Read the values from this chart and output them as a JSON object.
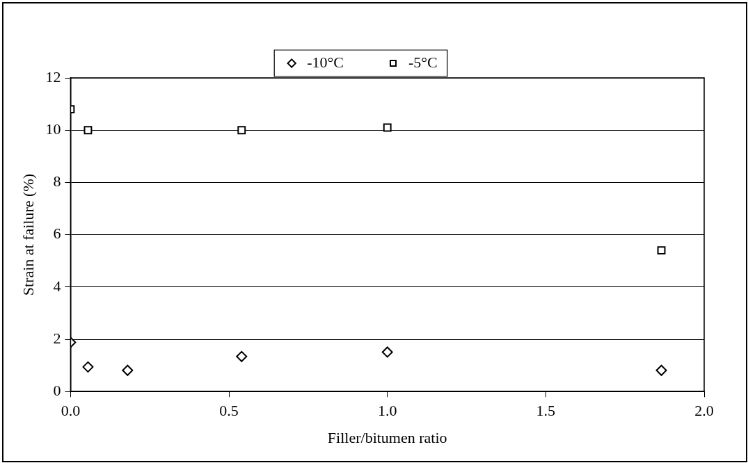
{
  "chart_data": {
    "type": "scatter",
    "xlabel": "Filler/bitumen ratio",
    "ylabel": "Strain at failure (%)",
    "series": [
      {
        "name": "-10°C",
        "color": "#000000",
        "marker": "diamond",
        "x": [
          0,
          0.055,
          0.18,
          0.54,
          1.0,
          1.865
        ],
        "values": [
          1.88,
          0.94,
          0.81,
          1.34,
          1.51,
          0.81
        ]
      },
      {
        "name": "-5°C",
        "color": "#000000",
        "marker": "square",
        "x": [
          0,
          0.055,
          0.54,
          1.0,
          1.865
        ],
        "values": [
          10.8,
          10.0,
          10.0,
          10.1,
          5.4
        ]
      }
    ],
    "xlim": [
      0,
      2
    ],
    "xticks": [
      {
        "value": 0,
        "label": "0.0"
      },
      0.5,
      {
        "value": 1,
        "label": "1.0"
      },
      1.5,
      {
        "value": 2,
        "label": "2.0"
      }
    ],
    "ylim": [
      0,
      12
    ],
    "yticks": [
      0,
      2,
      4,
      6,
      8,
      10,
      12
    ],
    "grid": "y",
    "legend": "top"
  }
}
